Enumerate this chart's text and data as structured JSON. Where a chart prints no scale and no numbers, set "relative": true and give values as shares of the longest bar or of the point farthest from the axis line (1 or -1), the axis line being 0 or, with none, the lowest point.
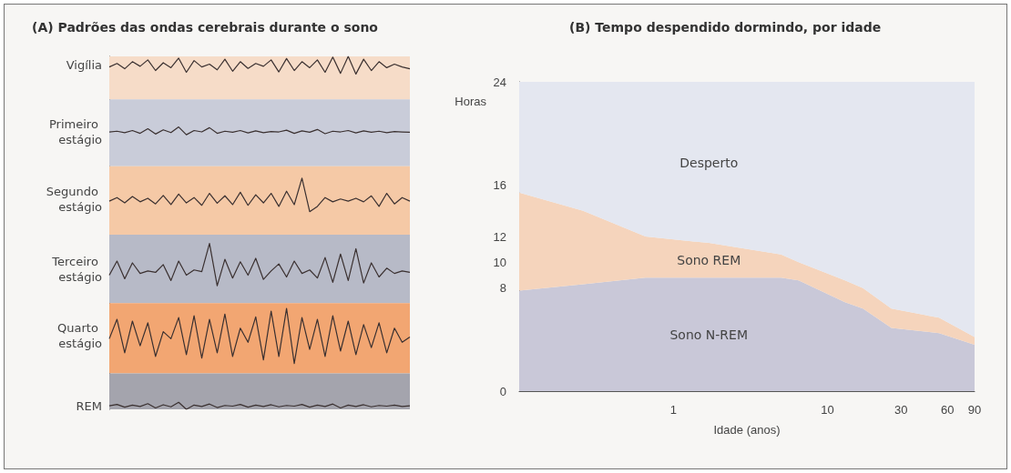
{
  "chart_data": [
    {
      "type": "line",
      "relative": true,
      "title": "(A) Padrões das ondas cerebrais durante o sono",
      "legend": false,
      "grid": false,
      "marker": "none",
      "line_style": "solid",
      "categories": [
        null,
        null,
        null,
        null,
        null,
        null,
        null,
        null,
        null,
        null,
        null,
        null,
        null,
        null,
        null,
        null,
        null,
        null,
        null,
        null,
        null,
        null,
        null,
        null,
        null,
        null,
        null,
        null,
        null,
        null,
        null,
        null,
        null,
        null,
        null,
        null,
        null,
        null,
        null,
        null
      ],
      "bands": [
        {
          "axis": "y",
          "from": 0.878,
          "to": 1,
          "color": "#f6dcc8"
        },
        {
          "axis": "y",
          "from": 0.689,
          "to": 0.878,
          "color": "#c9ccd9"
        },
        {
          "axis": "y",
          "from": 0.495,
          "to": 0.689,
          "color": "#f5c9a6"
        },
        {
          "axis": "y",
          "from": 0.301,
          "to": 0.495,
          "color": "#b7bac7"
        },
        {
          "axis": "y",
          "from": 0.102,
          "to": 0.301,
          "color": "#f2a672"
        },
        {
          "axis": "y",
          "from": 0,
          "to": 0.102,
          "color": "#a4a4ad"
        }
      ],
      "series": [
        {
          "name": "Vigília",
          "color": "#3a3030",
          "values": [
            0.97,
            0.98,
            0.965,
            0.985,
            0.972,
            0.99,
            0.96,
            0.982,
            0.968,
            0.995,
            0.955,
            0.988,
            0.97,
            0.978,
            0.962,
            0.992,
            0.958,
            0.985,
            0.966,
            0.98,
            0.972,
            0.99,
            0.956,
            0.994,
            0.96,
            0.985,
            0.968,
            0.99,
            0.955,
            0.998,
            0.952,
            1.0,
            0.95,
            0.992,
            0.96,
            0.985,
            0.968,
            0.978,
            0.97,
            0.965
          ]
        },
        {
          "name": "Primeiro estágio",
          "color": "#3a3030",
          "values": [
            0.786,
            0.788,
            0.784,
            0.79,
            0.782,
            0.795,
            0.78,
            0.792,
            0.784,
            0.8,
            0.778,
            0.79,
            0.786,
            0.798,
            0.782,
            0.788,
            0.785,
            0.79,
            0.783,
            0.789,
            0.784,
            0.787,
            0.786,
            0.791,
            0.782,
            0.789,
            0.785,
            0.793,
            0.781,
            0.788,
            0.786,
            0.79,
            0.783,
            0.789,
            0.785,
            0.788,
            0.784,
            0.787,
            0.786,
            0.785
          ]
        },
        {
          "name": "Segundo estágio",
          "color": "#3a3030",
          "values": [
            0.59,
            0.6,
            0.585,
            0.603,
            0.588,
            0.598,
            0.582,
            0.606,
            0.58,
            0.61,
            0.585,
            0.6,
            0.578,
            0.612,
            0.584,
            0.605,
            0.58,
            0.615,
            0.578,
            0.608,
            0.585,
            0.612,
            0.575,
            0.618,
            0.58,
            0.655,
            0.56,
            0.575,
            0.6,
            0.588,
            0.596,
            0.59,
            0.598,
            0.588,
            0.605,
            0.575,
            0.612,
            0.582,
            0.6,
            0.59
          ]
        },
        {
          "name": "Terceiro estágio",
          "color": "#3a3030",
          "values": [
            0.38,
            0.42,
            0.37,
            0.415,
            0.385,
            0.392,
            0.388,
            0.41,
            0.365,
            0.42,
            0.38,
            0.395,
            0.39,
            0.47,
            0.35,
            0.425,
            0.372,
            0.418,
            0.38,
            0.428,
            0.368,
            0.392,
            0.412,
            0.375,
            0.42,
            0.385,
            0.395,
            0.372,
            0.43,
            0.36,
            0.44,
            0.365,
            0.455,
            0.358,
            0.415,
            0.375,
            0.4,
            0.385,
            0.392,
            0.388
          ]
        },
        {
          "name": "Quarto estágio",
          "color": "#3a3030",
          "values": [
            0.2,
            0.255,
            0.16,
            0.25,
            0.18,
            0.245,
            0.15,
            0.22,
            0.2,
            0.26,
            0.155,
            0.265,
            0.145,
            0.255,
            0.16,
            0.27,
            0.15,
            0.23,
            0.19,
            0.262,
            0.14,
            0.278,
            0.15,
            0.286,
            0.13,
            0.26,
            0.17,
            0.255,
            0.15,
            0.265,
            0.165,
            0.25,
            0.155,
            0.24,
            0.175,
            0.245,
            0.16,
            0.23,
            0.19,
            0.205
          ]
        },
        {
          "name": "REM",
          "color": "#3a3030",
          "values": [
            0.01,
            0.014,
            0.006,
            0.012,
            0.008,
            0.016,
            0.004,
            0.013,
            0.007,
            0.02,
            0.0,
            0.012,
            0.008,
            0.015,
            0.005,
            0.011,
            0.009,
            0.014,
            0.006,
            0.012,
            0.008,
            0.013,
            0.007,
            0.011,
            0.009,
            0.014,
            0.006,
            0.012,
            0.008,
            0.015,
            0.004,
            0.012,
            0.008,
            0.013,
            0.007,
            0.011,
            0.009,
            0.012,
            0.008,
            0.01
          ]
        }
      ]
    },
    {
      "type": "area",
      "stacked": true,
      "title": "(B) Tempo despendido dormindo, por idade",
      "xlabel": "Idade (anos)",
      "ylabel": "Horas",
      "log": "x",
      "x": [
        0.1,
        0.26,
        0.66,
        1.7,
        5,
        6.5,
        13,
        17,
        26,
        53,
        90
      ],
      "xlim": [
        0.1,
        90
      ],
      "xticks": [
        1,
        10,
        30,
        60,
        90
      ],
      "ylim": [
        0,
        24
      ],
      "yticks": [
        0,
        8,
        10,
        12,
        16,
        24
      ],
      "grid": false,
      "legend": false,
      "series": [
        {
          "name": "Sono N-REM",
          "color": "#c9c8d8",
          "values": [
            7.8,
            8.3,
            8.8,
            8.8,
            8.8,
            8.6,
            6.9,
            6.4,
            4.9,
            4.5,
            3.6
          ]
        },
        {
          "name": "Sono REM",
          "color": "#f5d4bc",
          "values": [
            7.6,
            5.7,
            3.2,
            2.7,
            1.8,
            1.4,
            1.7,
            1.6,
            1.5,
            1.2,
            0.6
          ]
        },
        {
          "name": "Desperto",
          "color": "#e4e7f0",
          "values": [
            8.6,
            10,
            12,
            12.5,
            13.4,
            14,
            15.4,
            16,
            17.6,
            18.3,
            19.8
          ]
        }
      ]
    }
  ]
}
